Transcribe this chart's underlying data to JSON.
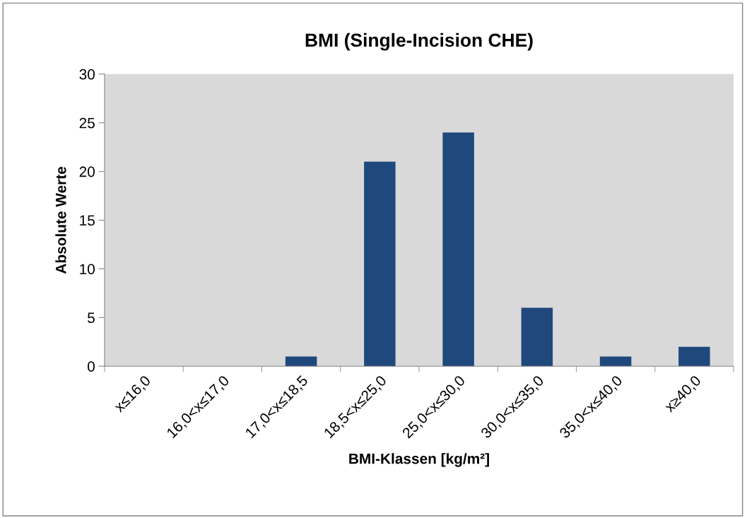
{
  "chart_data": {
    "type": "bar",
    "title": "BMI (Single-Incision CHE)",
    "xlabel": "BMI-Klassen [kg/m²]",
    "ylabel": "Absolute Werte",
    "categories": [
      "x≤16,0",
      "16,0<x≤17,0",
      "17,0<x≤18,5",
      "18,5<x≤25,0",
      "25,0<x≤30,0",
      "30,0<x≤35,0",
      "35,0<x≤40,0",
      "x≥40,0"
    ],
    "values": [
      0,
      0,
      1,
      21,
      24,
      6,
      1,
      2
    ],
    "color": "#1f497d",
    "ylim": [
      0,
      30
    ],
    "yticks": [
      0,
      5,
      10,
      15,
      20,
      25,
      30
    ],
    "grid": false
  }
}
